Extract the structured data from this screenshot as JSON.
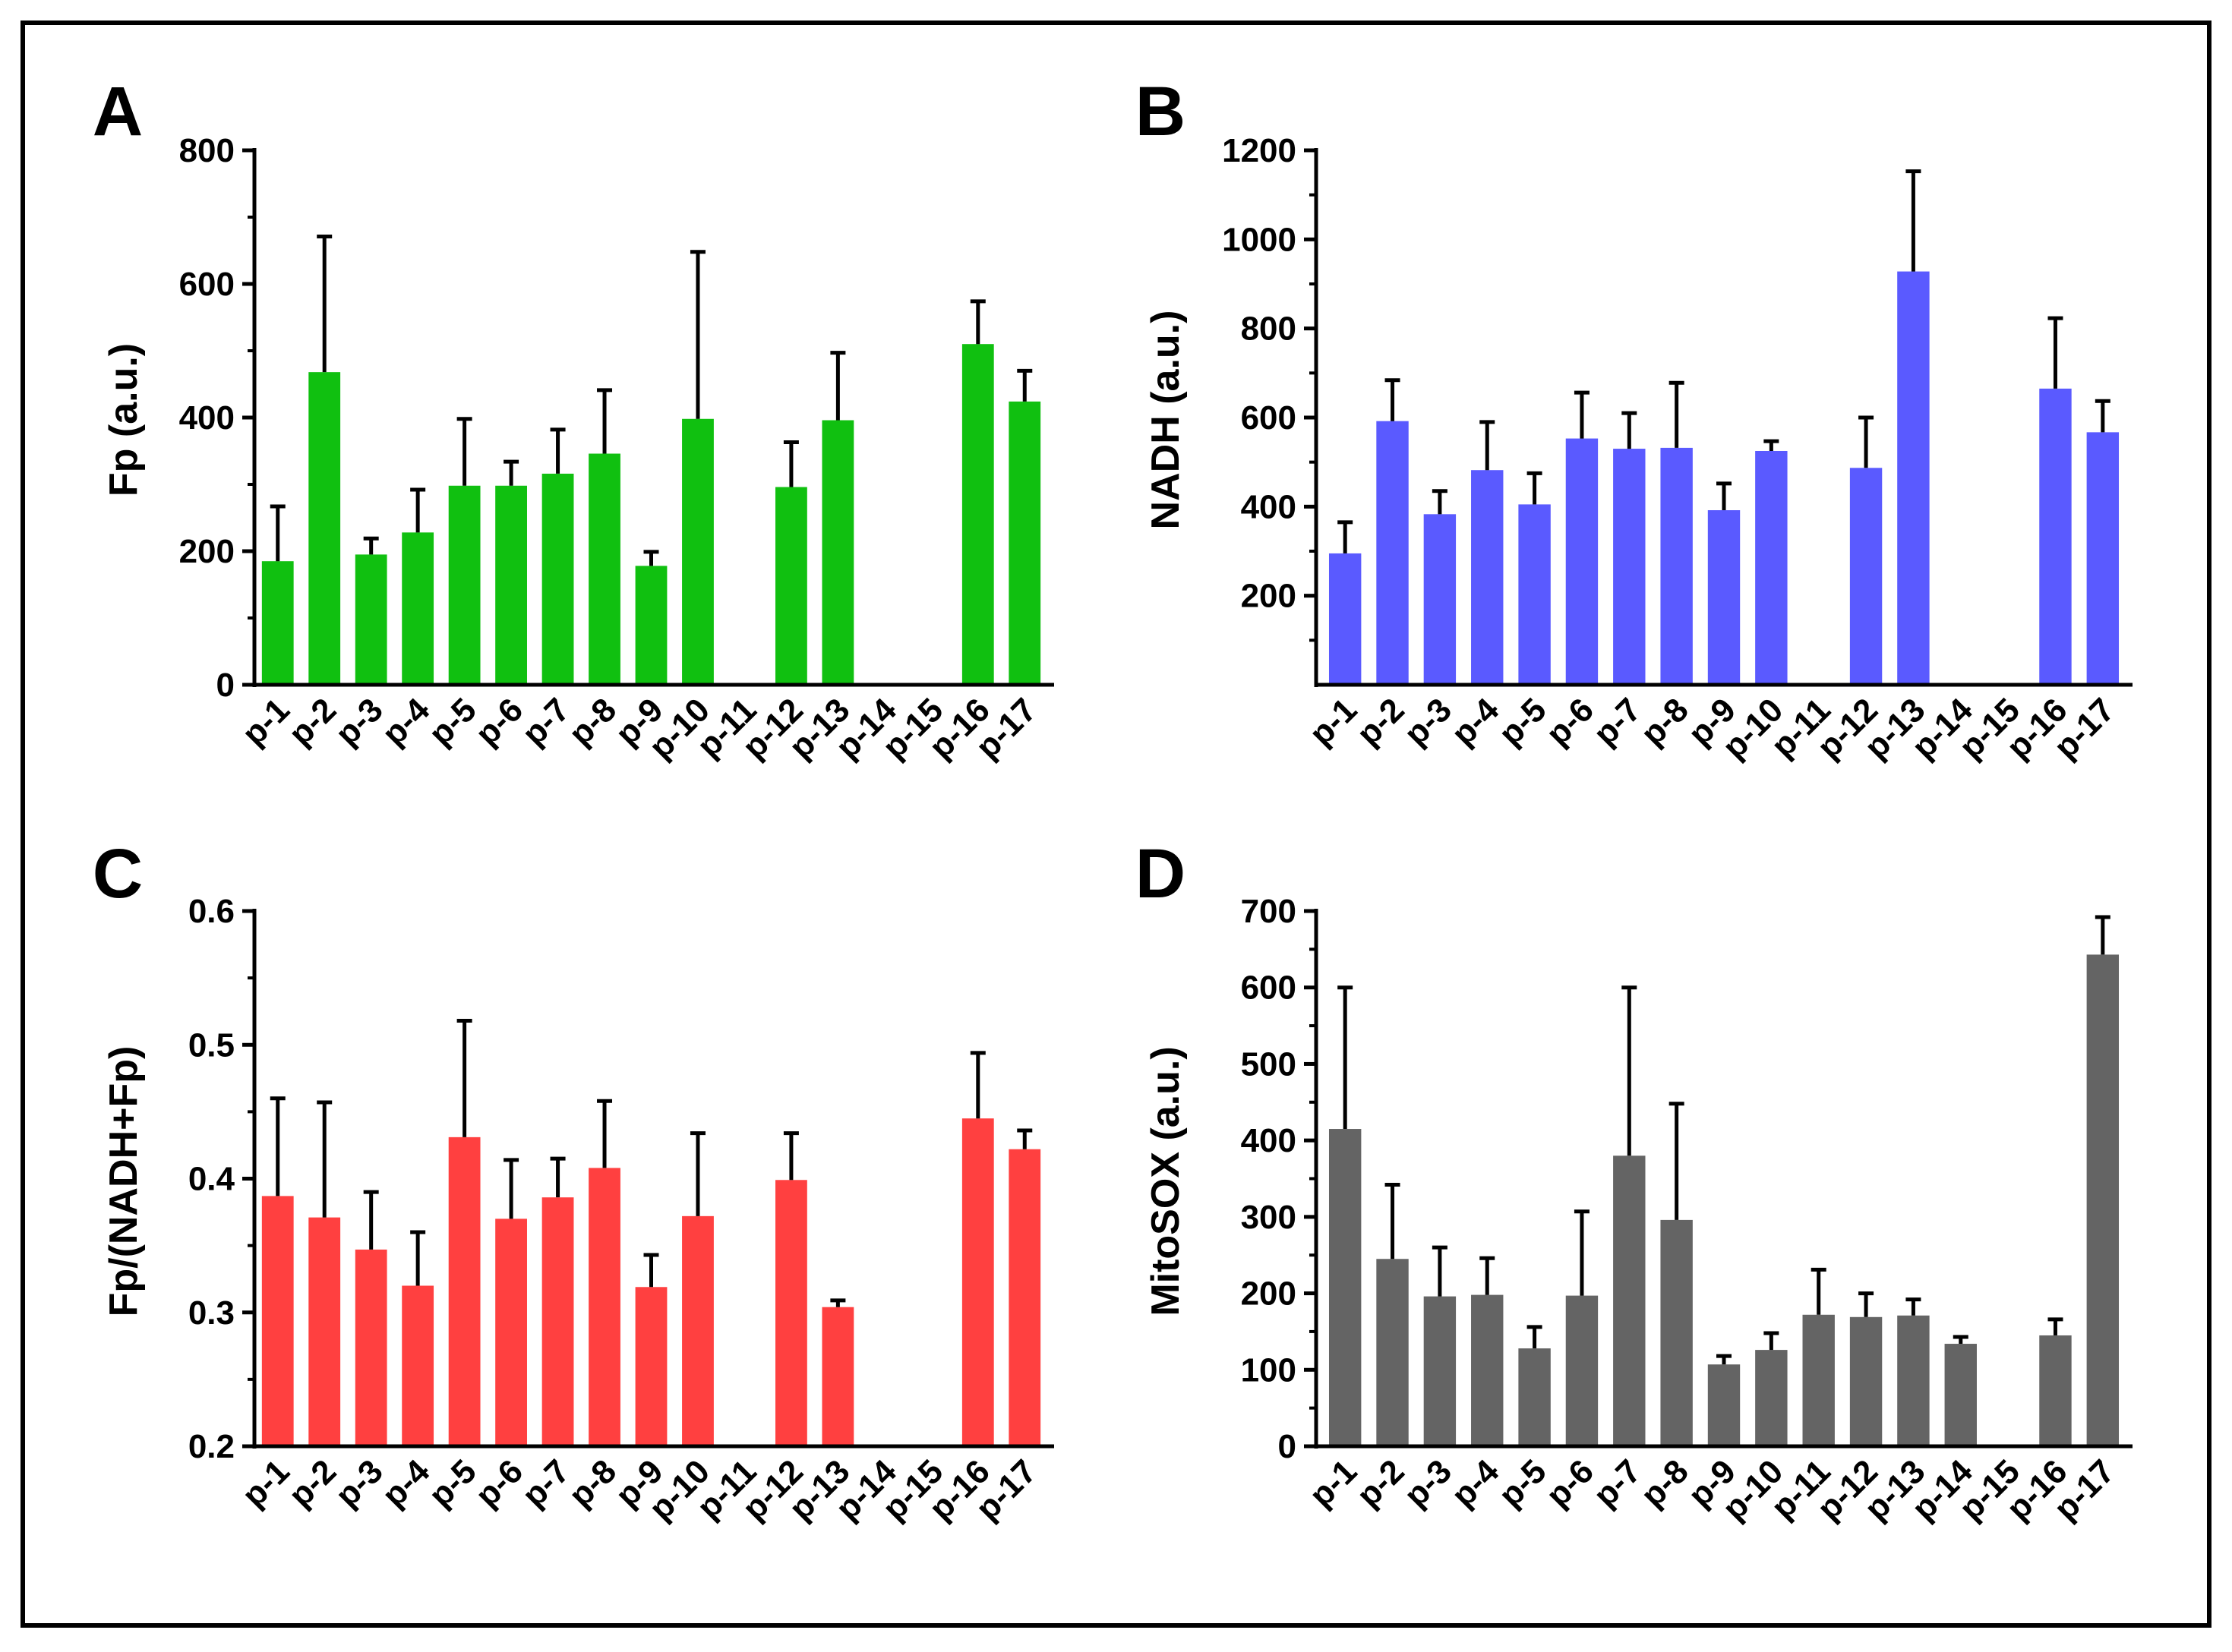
{
  "categories": [
    "p-1",
    "p-2",
    "p-3",
    "p-4",
    "p-5",
    "p-6",
    "p-7",
    "p-8",
    "p-9",
    "p-10",
    "p-11",
    "p-12",
    "p-13",
    "p-14",
    "p-15",
    "p-16",
    "p-17"
  ],
  "chart_data": [
    {
      "panel": "A",
      "type": "bar",
      "ylabel": "Fp (a.u.)",
      "xlabel": "",
      "ylim": [
        0,
        800
      ],
      "yticks": [
        0,
        200,
        400,
        600,
        800
      ],
      "tick_labels": [
        "0",
        "200",
        "400",
        "600",
        "800"
      ],
      "color": "#10c010",
      "values": [
        185,
        468,
        195,
        228,
        298,
        298,
        316,
        346,
        178,
        398,
        null,
        296,
        396,
        null,
        null,
        510,
        424
      ],
      "errors": [
        82,
        203,
        24,
        64,
        100,
        36,
        66,
        95,
        21,
        250,
        null,
        67,
        101,
        null,
        null,
        64,
        46
      ]
    },
    {
      "panel": "B",
      "type": "bar",
      "ylabel": "NADH (a.u.)",
      "xlabel": "",
      "ylim": [
        0,
        1200
      ],
      "yticks": [
        200,
        400,
        600,
        800,
        1000,
        1200
      ],
      "tick_labels": [
        "200",
        "400",
        "600",
        "800",
        "1000",
        "1200"
      ],
      "color": "#5a5aff",
      "values": [
        295,
        592,
        383,
        482,
        405,
        553,
        530,
        532,
        392,
        525,
        null,
        487,
        928,
        null,
        null,
        665,
        567
      ],
      "errors": [
        70,
        92,
        52,
        108,
        70,
        103,
        80,
        146,
        60,
        22,
        null,
        113,
        225,
        null,
        null,
        158,
        70
      ]
    },
    {
      "panel": "C",
      "type": "bar",
      "ylabel": "Fp/(NADH+Fp)",
      "xlabel": "",
      "ylim": [
        0.2,
        0.6
      ],
      "yticks": [
        0.2,
        0.3,
        0.4,
        0.5,
        0.6
      ],
      "tick_labels": [
        "0.2",
        "0.3",
        "0.4",
        "0.5",
        "0.6"
      ],
      "color": "#ff4040",
      "values": [
        0.387,
        0.371,
        0.347,
        0.32,
        0.431,
        0.37,
        0.386,
        0.408,
        0.319,
        0.372,
        null,
        0.399,
        0.304,
        null,
        null,
        0.445,
        0.422
      ],
      "errors": [
        0.073,
        0.086,
        0.043,
        0.04,
        0.087,
        0.044,
        0.029,
        0.05,
        0.024,
        0.062,
        null,
        0.035,
        0.005,
        null,
        null,
        0.049,
        0.014
      ]
    },
    {
      "panel": "D",
      "type": "bar",
      "ylabel": "MitoSOX (a.u.)",
      "xlabel": "",
      "ylim": [
        0,
        700
      ],
      "yticks": [
        0,
        100,
        200,
        300,
        400,
        500,
        600,
        700
      ],
      "tick_labels": [
        "0",
        "100",
        "200",
        "300",
        "400",
        "500",
        "600",
        "700"
      ],
      "color": "#646464",
      "values": [
        415,
        245,
        196,
        198,
        128,
        197,
        380,
        296,
        107,
        126,
        172,
        169,
        171,
        134,
        null,
        145,
        643
      ],
      "errors": [
        185,
        97,
        64,
        48,
        28,
        110,
        220,
        152,
        11,
        22,
        59,
        31,
        21,
        9,
        null,
        21,
        49
      ]
    }
  ]
}
